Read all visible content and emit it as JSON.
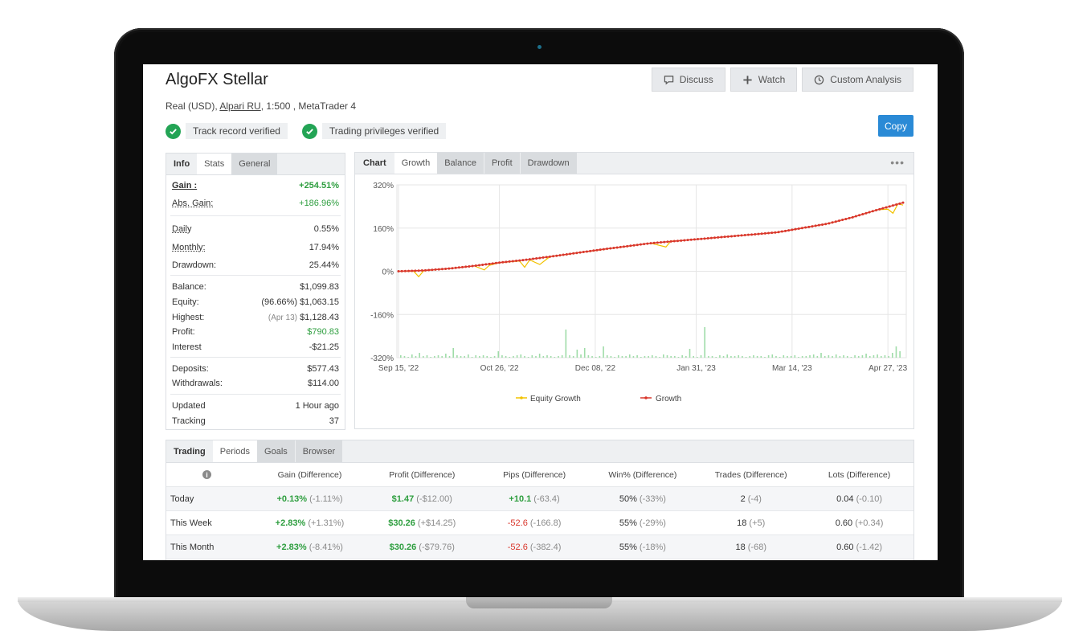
{
  "header": {
    "title": "AlgoFX Stellar",
    "account_prefix": "Real (USD),",
    "broker": "Alpari RU",
    "account_suffix": ", 1:500 , MetaTrader 4",
    "buttons": {
      "discuss": "Discuss",
      "watch": "Watch",
      "custom_analysis": "Custom Analysis",
      "copy": "Copy"
    },
    "verified": [
      "Track record verified",
      "Trading privileges verified"
    ]
  },
  "stats": {
    "tabs": [
      "Info",
      "Stats",
      "General"
    ],
    "rows": {
      "gain": {
        "label": "Gain :",
        "value": "+254.51%"
      },
      "abs_gain": {
        "label": "Abs. Gain:",
        "value": "+186.96%"
      },
      "daily": {
        "label": "Daily",
        "value": "0.55%"
      },
      "monthly": {
        "label": "Monthly:",
        "value": "17.94%"
      },
      "drawdown": {
        "label": "Drawdown:",
        "value": "25.44%"
      },
      "balance": {
        "label": "Balance:",
        "value": "$1,099.83"
      },
      "equity": {
        "label": "Equity:",
        "note": "(96.66%)",
        "value": "$1,063.15"
      },
      "highest": {
        "label": "Highest:",
        "note": "(Apr 13)",
        "value": "$1,128.43"
      },
      "profit": {
        "label": "Profit:",
        "value": "$790.83"
      },
      "interest": {
        "label": "Interest",
        "value": "-$21.25"
      },
      "deposits": {
        "label": "Deposits:",
        "value": "$577.43"
      },
      "withdrawals": {
        "label": "Withdrawals:",
        "value": "$114.00"
      },
      "updated": {
        "label": "Updated",
        "value": "1 Hour ago"
      },
      "tracking": {
        "label": "Tracking",
        "value": "37"
      }
    }
  },
  "chart_panel": {
    "tabs": [
      "Chart",
      "Growth",
      "Balance",
      "Profit",
      "Drawdown"
    ],
    "more": "•••"
  },
  "chart_data": {
    "type": "line",
    "ylim": [
      -320,
      320
    ],
    "y_ticks": [
      "320%",
      "160%",
      "0%",
      "-160%",
      "-320%"
    ],
    "x_ticks": [
      "Sep 15, '22",
      "Oct 26, '22",
      "Dec 08, '22",
      "Jan 31, '23",
      "Mar 14, '23",
      "Apr 27, '23"
    ],
    "series": [
      {
        "name": "Growth",
        "color": "#d9362b",
        "x": [
          0,
          5,
          10,
          15,
          20,
          25,
          30,
          35,
          40,
          45,
          50,
          55,
          60,
          65,
          70,
          75,
          80,
          85,
          90,
          95,
          100
        ],
        "values": [
          0,
          3,
          10,
          20,
          32,
          42,
          54,
          67,
          80,
          92,
          104,
          112,
          120,
          128,
          136,
          144,
          160,
          176,
          200,
          228,
          254
        ]
      },
      {
        "name": "Equity Growth",
        "color": "#f2c200",
        "x": [
          0,
          3,
          4,
          5,
          10,
          15,
          17,
          18,
          20,
          24,
          25,
          26,
          28,
          30,
          35,
          50,
          53,
          54,
          55,
          60,
          75,
          80,
          85,
          90,
          95,
          97,
          98,
          99,
          100
        ],
        "values": [
          0,
          0,
          -20,
          2,
          10,
          20,
          5,
          22,
          32,
          38,
          15,
          42,
          25,
          54,
          67,
          104,
          90,
          112,
          112,
          120,
          144,
          160,
          176,
          200,
          228,
          230,
          215,
          250,
          245
        ]
      }
    ],
    "volume_bars": [
      3,
      2,
      1,
      4,
      2,
      6,
      2,
      3,
      1,
      2,
      3,
      2,
      5,
      2,
      12,
      3,
      2,
      2,
      4,
      1,
      3,
      2,
      3,
      2,
      1,
      2,
      8,
      3,
      2,
      1,
      2,
      3,
      4,
      2,
      1,
      3,
      2,
      5,
      2,
      3,
      2,
      1,
      2,
      3,
      35,
      3,
      2,
      10,
      4,
      12,
      3,
      2,
      1,
      2,
      14,
      3,
      2,
      1,
      3,
      2,
      2,
      4,
      2,
      3,
      1,
      2,
      2,
      3,
      2,
      1,
      4,
      3,
      2,
      2,
      1,
      3,
      2,
      11,
      2,
      1,
      3,
      38,
      2,
      2,
      1,
      3,
      2,
      4,
      2,
      2,
      3,
      2,
      1,
      2,
      3,
      2,
      2,
      1,
      3,
      4,
      2,
      1,
      3,
      2,
      2,
      3,
      1,
      2,
      2,
      3,
      4,
      2,
      6,
      2,
      3,
      2,
      4,
      2,
      3,
      2,
      1,
      3,
      2,
      3,
      5,
      2,
      3,
      4,
      2,
      3,
      2,
      6,
      14,
      8
    ],
    "legend": [
      "Equity Growth",
      "Growth"
    ]
  },
  "periods": {
    "tabs": [
      "Trading",
      "Periods",
      "Goals",
      "Browser"
    ],
    "columns": [
      "Gain (Difference)",
      "Profit (Difference)",
      "Pips (Difference)",
      "Win% (Difference)",
      "Trades (Difference)",
      "Lots (Difference)"
    ],
    "rows": [
      {
        "label": "Today",
        "gain": "+0.13%",
        "gain_diff": "(-1.11%)",
        "profit": "$1.47",
        "profit_diff": "(-$12.00)",
        "pips": "+10.1",
        "pips_diff": "(-63.4)",
        "win": "50%",
        "win_diff": "(-33%)",
        "trades": "2",
        "trades_diff": "(-4)",
        "lots": "0.04",
        "lots_diff": "(-0.10)"
      },
      {
        "label": "This Week",
        "gain": "+2.83%",
        "gain_diff": "(+1.31%)",
        "profit": "$30.26",
        "profit_diff": "(+$14.25)",
        "pips": "-52.6",
        "pips_diff": "(-166.8)",
        "win": "55%",
        "win_diff": "(-29%)",
        "trades": "18",
        "trades_diff": "(+5)",
        "lots": "0.60",
        "lots_diff": "(+0.34)"
      },
      {
        "label": "This Month",
        "gain": "+2.83%",
        "gain_diff": "(-8.41%)",
        "profit": "$30.26",
        "profit_diff": "(-$79.76)",
        "pips": "-52.6",
        "pips_diff": "(-382.4)",
        "win": "55%",
        "win_diff": "(-18%)",
        "trades": "18",
        "trades_diff": "(-68)",
        "lots": "0.60",
        "lots_diff": "(-1.42)"
      }
    ]
  }
}
